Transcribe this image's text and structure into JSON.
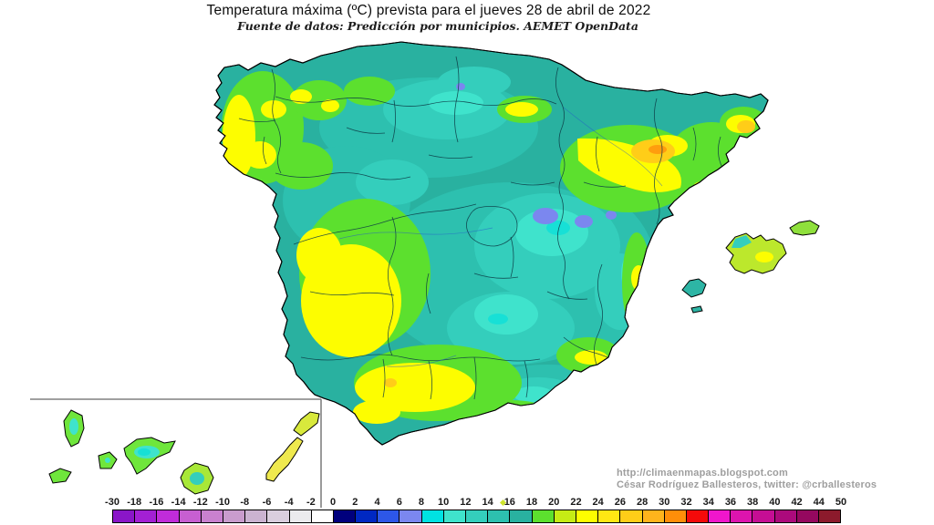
{
  "header": {
    "title": "Temperatura máxima (ºC) prevista para el jueves 28 de abril de 2022",
    "subtitle": "Fuente de datos: Predicción por municipios. AEMET OpenData"
  },
  "legend": {
    "labels": [
      "-30",
      "-18",
      "-16",
      "-14",
      "-12",
      "-10",
      "-8",
      "-6",
      "-4",
      "-2",
      "0",
      "2",
      "4",
      "6",
      "8",
      "10",
      "12",
      "14",
      "16",
      "18",
      "20",
      "22",
      "24",
      "26",
      "28",
      "30",
      "32",
      "34",
      "36",
      "38",
      "40",
      "42",
      "44",
      "50"
    ],
    "colors": [
      "#8A16C8",
      "#A320D4",
      "#C02CDA",
      "#C75FD1",
      "#C981CF",
      "#C99CCD",
      "#CBB3D1",
      "#DACEDE",
      "#EBEBEE",
      "#FFFFFF",
      "#00007D",
      "#0028C2",
      "#2D57E8",
      "#7B87EF",
      "#00E2E2",
      "#3FE3CC",
      "#34CEBC",
      "#2DC0AF",
      "#29B1A0",
      "#5CE02E",
      "#C6EC15",
      "#FDFD00",
      "#FFE713",
      "#FFCD18",
      "#FFB41C",
      "#FF8E09",
      "#F40A0A",
      "#F016CC",
      "#DD14AE",
      "#C50E94",
      "#AC0A7C",
      "#95085F",
      "#8C1A2C"
    ],
    "unit": "ºC"
  },
  "footer": {
    "url": "http://climaenmapas.blogspot.com",
    "credit": "César Rodríguez Ballesteros, twitter: @crballesteros"
  },
  "map": {
    "sea_color": "#FFFFFF",
    "base_color": "#29B1A0",
    "coast_color": "#000000",
    "border_color": "#0C3A44",
    "inset_line_color": "#808080"
  }
}
